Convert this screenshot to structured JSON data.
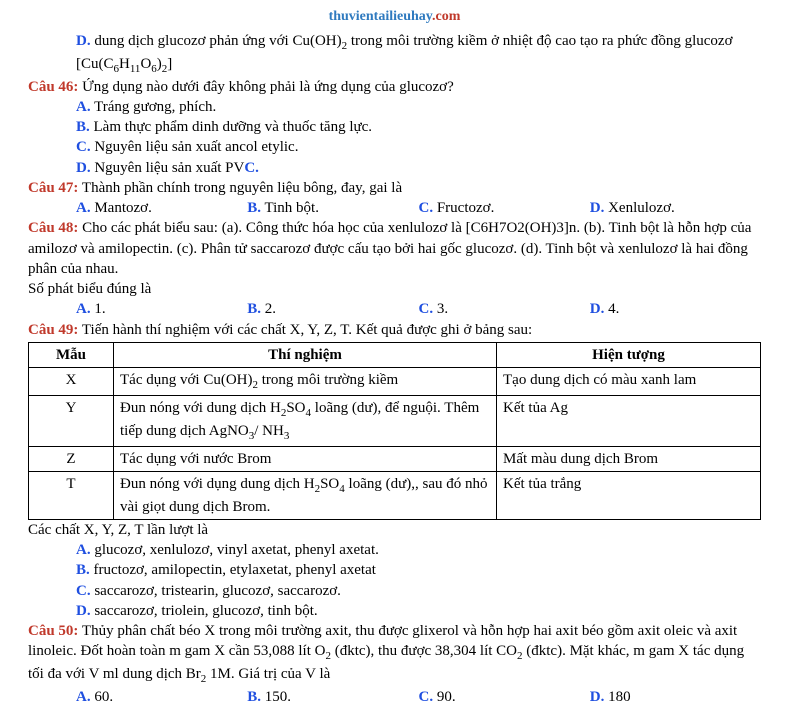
{
  "header": {
    "part1": "thuvientailieuhay",
    "part2": ".com"
  },
  "intro_d": {
    "letter": "D.",
    "text1": " dung dịch glucozơ phản ứng với Cu(OH)",
    "sub1": "2",
    "text2": " trong môi trường kiềm ở nhiệt độ cao tạo ra phức đồng glucozơ [Cu(C",
    "sub2": "6",
    "text3": "H",
    "sub3": "11",
    "text4": "O",
    "sub4": "6",
    "text5": ")",
    "sub5": "2",
    "text6": "]"
  },
  "q46": {
    "label": "Câu 46:",
    "stem": " Ứng dụng nào dưới đây không phải là ứng dụng của glucozơ?",
    "optA": {
      "l": "A.",
      "t": " Tráng gương, phích."
    },
    "optB": {
      "l": "B.",
      "t": " Làm thực phẩm dinh dưỡng và thuốc tăng lực."
    },
    "optC": {
      "l": "C.",
      "t": " Nguyên liệu sản xuất ancol etylic."
    },
    "optD": {
      "l": "D.",
      "t1": " Nguyên liệu sản xuất PV",
      "t2": "C."
    }
  },
  "q47": {
    "label": "Câu 47:",
    "stem": " Thành phần chính trong nguyên liệu bông, đay, gai là",
    "A": {
      "l": "A.",
      "t": " Mantozơ."
    },
    "B": {
      "l": "B.",
      "t": " Tinh bột."
    },
    "C": {
      "l": "C.",
      "t": " Fructozơ."
    },
    "D": {
      "l": "D.",
      "t": " Xenlulozơ."
    }
  },
  "q48": {
    "label": "Câu 48:",
    "stem": " Cho các phát biểu sau: (a). Công thức hóa học của xenlulozơ là [C6H7O2(OH)3]n. (b). Tinh bột là hỗn hợp của amilozơ và amilopectin. (c). Phân tử saccarozơ được cấu tạo bởi hai gốc glucozơ. (d). Tinh bột và xenlulozơ là hai đồng phân của nhau.",
    "line2": "Số phát biểu đúng là",
    "A": {
      "l": "A.",
      "t": " 1."
    },
    "B": {
      "l": "B.",
      "t": " 2."
    },
    "C": {
      "l": "C.",
      "t": " 3."
    },
    "D": {
      "l": "D.",
      "t": " 4."
    }
  },
  "q49": {
    "label": "Câu 49:",
    "stem": " Tiến hành thí nghiệm với các chất X, Y, Z, T. Kết quả được ghi ở bảng sau:",
    "table": {
      "headers": {
        "c1": "Mẫu",
        "c2": "Thí nghiệm",
        "c3": "Hiện tượng"
      },
      "rows": [
        {
          "m": "X",
          "exp_a": "Tác dụng với Cu(OH)",
          "exp_sub": "2",
          "exp_b": " trong môi trường kiềm",
          "res": "Tạo dung dịch có màu xanh lam"
        },
        {
          "m": "Y",
          "exp_a": "Đun nóng với dung dịch H",
          "exp_sub1": "2",
          "exp_mid": "SO",
          "exp_sub2": "4",
          "exp_b": " loãng (dư), để nguội. Thêm tiếp  dung dịch AgNO",
          "exp_sub3": "3",
          "exp_c": "/ NH",
          "exp_sub4": "3",
          "res": "Kết tủa Ag"
        },
        {
          "m": "Z",
          "exp": "Tác dụng với nước Brom",
          "res": "Mất màu dung dịch Brom"
        },
        {
          "m": "T",
          "exp_a": "Đun nóng với  dụng dung dịch H",
          "exp_sub1": "2",
          "exp_mid": "SO",
          "exp_sub2": "4",
          "exp_b": " loãng (dư),, sau đó nhỏ vài giọt dung dịch Brom.",
          "res": "Kết tủa trắng"
        }
      ]
    },
    "after": "Các chất X, Y, Z, T lần lượt là",
    "optA": {
      "l": "A.",
      "t": " glucozơ, xenlulozơ, vinyl axetat, phenyl axetat."
    },
    "optB": {
      "l": "B.",
      "t": " fructozơ, amilopectin, etylaxetat, phenyl axetat"
    },
    "optC": {
      "l": "C.",
      "t": " saccarozơ, tristearin, glucozơ, saccarozơ."
    },
    "optD": {
      "l": "D.",
      "t": " saccarozơ, triolein, glucozơ, tinh bột."
    }
  },
  "q50": {
    "label": "Câu 50:",
    "stem_a": " Thủy phân chất béo X trong môi trường axit, thu được glixerol và hỗn hợp hai axit béo gồm axit oleic và axit linoleic. Đốt hoàn toàn m gam X cần 53,088 lít O",
    "sub1": "2",
    "stem_b": " (đktc), thu được 38,304 lít CO",
    "sub2": "2",
    "stem_c": " (đktc). Mặt khác, m gam X tác dụng tối đa với V ml dung dịch Br",
    "sub3": "2",
    "stem_d": " 1M. Giá trị của V là",
    "A": {
      "l": "A.",
      "t": " 60."
    },
    "B": {
      "l": "B.",
      "t": " 150."
    },
    "C": {
      "l": "C.",
      "t": " 90."
    },
    "D": {
      "l": "D.",
      "t": " 180"
    }
  },
  "colors": {
    "red": "#c0392b",
    "blue": "#1f4fe0",
    "header_blue": "#2f7abf",
    "text": "#000000",
    "bg": "#ffffff",
    "border": "#000000"
  }
}
